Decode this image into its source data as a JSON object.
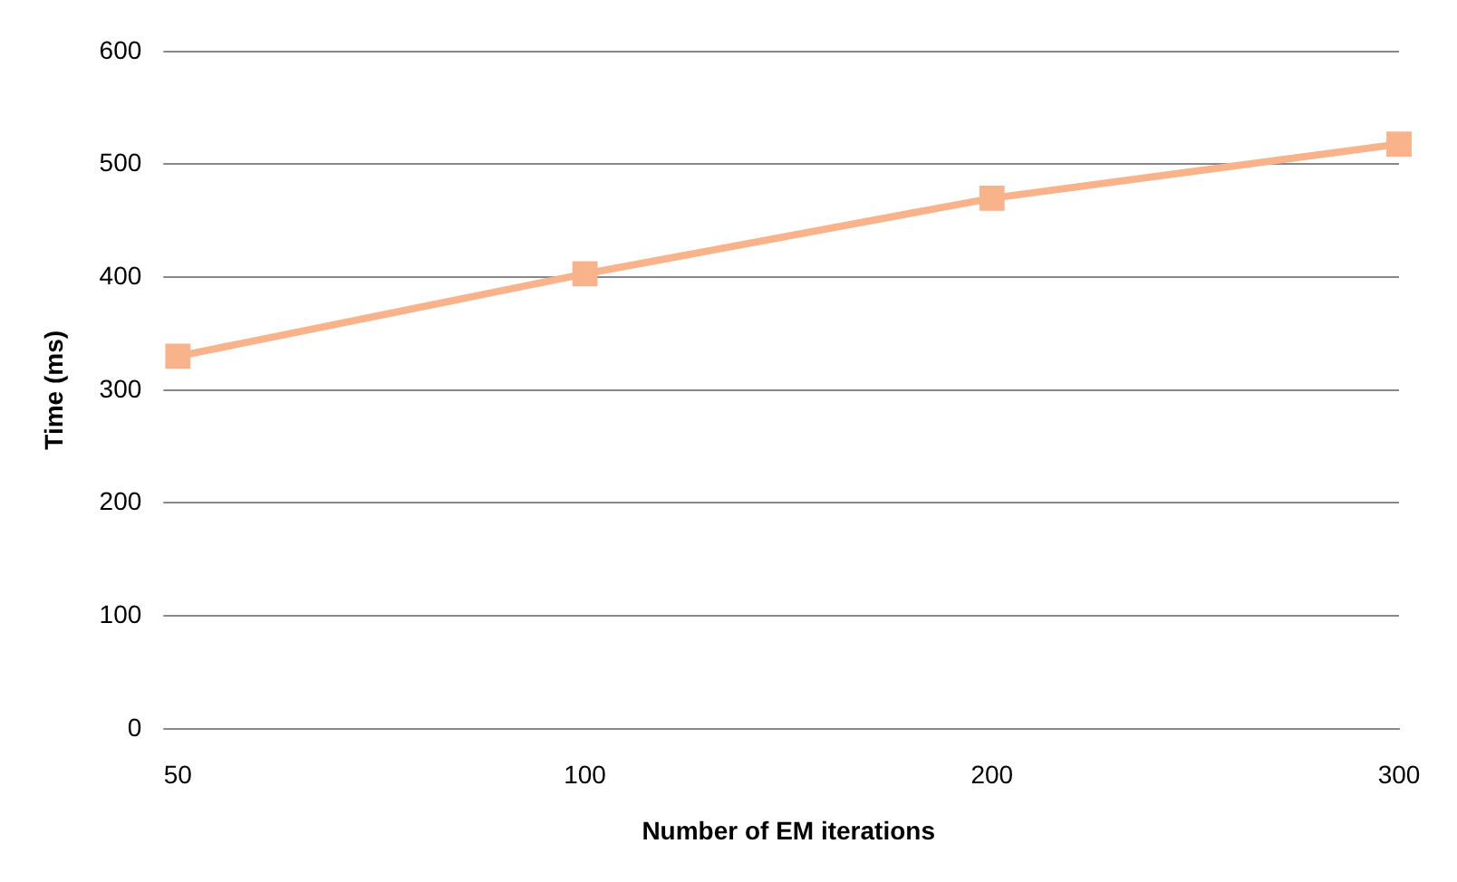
{
  "chart_data": {
    "type": "line",
    "xlabel": "Number of EM iterations",
    "ylabel": "Time (ms)",
    "categories": [
      "50",
      "100",
      "200",
      "300"
    ],
    "series": [
      {
        "color": "#f9b38a",
        "values": [
          330,
          403,
          470,
          518
        ]
      }
    ],
    "ylim": [
      0,
      600
    ],
    "yticks": [
      0,
      100,
      200,
      300,
      400,
      500,
      600
    ],
    "grid": "y",
    "legend": false,
    "marker": "square",
    "line_style": "solid"
  }
}
